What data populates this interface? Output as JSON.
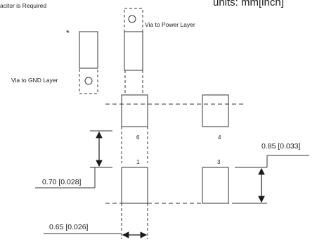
{
  "header": {
    "note": "acitor is Required",
    "units": "units: mm[inch]"
  },
  "labels": {
    "via_power": "Via to Power Layer",
    "via_gnd": "Via to GND Layer",
    "capacitor_marker": "*"
  },
  "pins": [
    "6",
    "4",
    "1",
    "3"
  ],
  "dimensions": {
    "pad_pitch_height": "0.85 [0.033]",
    "pad_gap": "0.70 [0.028]",
    "pad_width": "0.65 [0.026]"
  }
}
